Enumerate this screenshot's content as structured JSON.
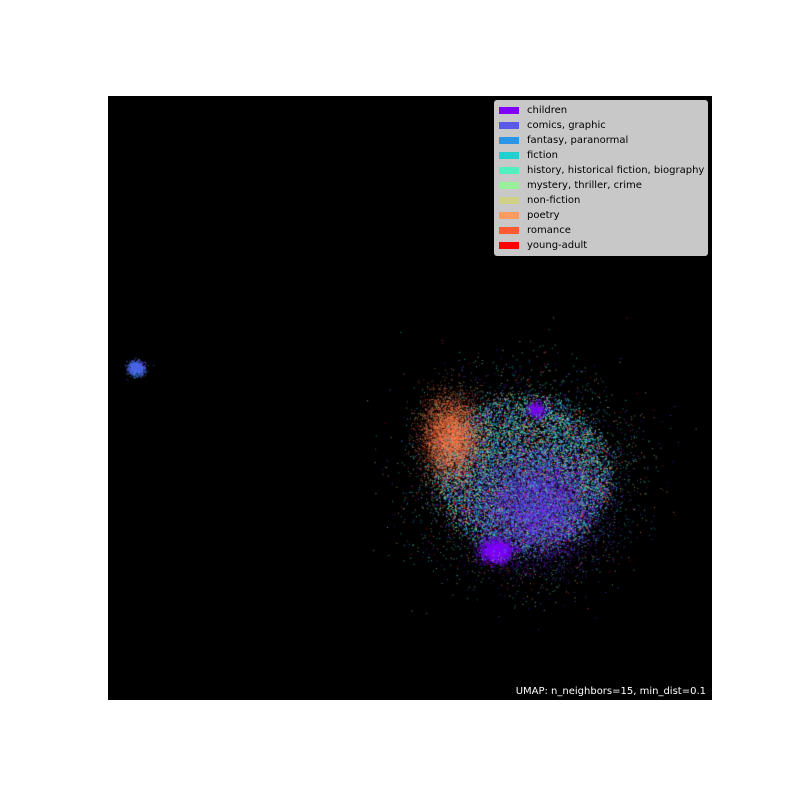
{
  "chart_data": {
    "type": "scatter",
    "title": "",
    "xlabel": "",
    "ylabel": "",
    "grid": false,
    "axes_visible": false,
    "background": "#000000",
    "legend_placement": "top-right",
    "annotation": "UMAP: n_neighbors=15, min_dist=0.1",
    "series": [
      {
        "name": "children",
        "color": "#8000ff"
      },
      {
        "name": "comics, graphic",
        "color": "#5a5ae8"
      },
      {
        "name": "fantasy, paranormal",
        "color": "#2a96e8"
      },
      {
        "name": "fiction",
        "color": "#20cfd0"
      },
      {
        "name": "history, historical fiction, biography",
        "color": "#50f0c0"
      },
      {
        "name": "mystery, thriller, crime",
        "color": "#98f09a"
      },
      {
        "name": "non-fiction",
        "color": "#d0d088"
      },
      {
        "name": "poetry",
        "color": "#ff9a60"
      },
      {
        "name": "romance",
        "color": "#ff5a32"
      },
      {
        "name": "young-adult",
        "color": "#ff0000"
      }
    ],
    "clusters": [
      {
        "name": "main",
        "x_range": [
          0.52,
          0.82
        ],
        "y_range": [
          0.23,
          0.53
        ]
      },
      {
        "name": "isolated",
        "x_range": [
          0.03,
          0.06
        ],
        "y_range": [
          0.53,
          0.56
        ]
      }
    ]
  }
}
